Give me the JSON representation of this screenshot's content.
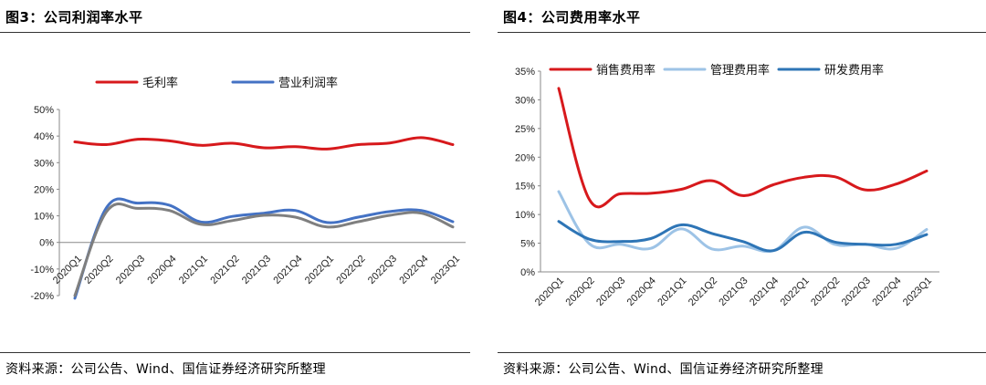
{
  "left": {
    "title": "图3：公司利润率水平",
    "source": "资料来源：公司公告、Wind、国信证券经济研究所整理"
  },
  "right": {
    "title": "图4：公司费用率水平",
    "source": "资料来源：公司公告、Wind、国信证券经济研究所整理"
  },
  "chart_data": [
    {
      "type": "line",
      "title": "",
      "xlabel": "",
      "ylabel": "",
      "categories": [
        "2020Q1",
        "2020Q2",
        "2020Q3",
        "2020Q4",
        "2021Q1",
        "2021Q2",
        "2021Q3",
        "2021Q4",
        "2022Q1",
        "2022Q2",
        "2022Q3",
        "2022Q4",
        "2023Q1"
      ],
      "y_ticks": [
        "50%",
        "40%",
        "30%",
        "20%",
        "10%",
        "0%",
        "-10%",
        "-20%"
      ],
      "ylim": [
        -20,
        50
      ],
      "grid": false,
      "legend_position": "top",
      "series": [
        {
          "name": "毛利率",
          "color": "#d7191c",
          "width": 3,
          "values": [
            37.8,
            36.8,
            38.8,
            38.2,
            36.5,
            37.3,
            35.6,
            36.0,
            35.1,
            36.8,
            37.4,
            39.4,
            36.8
          ]
        },
        {
          "name": "营业利润率",
          "color": "#4472c4",
          "width": 3,
          "values": [
            -21.0,
            13.0,
            14.8,
            14.0,
            7.7,
            9.8,
            11.0,
            12.0,
            7.5,
            9.5,
            11.6,
            12.0,
            7.8
          ]
        },
        {
          "name": "",
          "color": "#7f7f7f",
          "width": 3,
          "values": [
            -20.0,
            11.5,
            12.8,
            12.0,
            6.8,
            8.2,
            10.2,
            9.5,
            5.8,
            7.8,
            10.2,
            11.0,
            5.8
          ]
        }
      ]
    },
    {
      "type": "line",
      "title": "",
      "xlabel": "",
      "ylabel": "",
      "categories": [
        "2020Q1",
        "2020Q2",
        "2020Q3",
        "2020Q4",
        "2021Q1",
        "2021Q2",
        "2021Q3",
        "2021Q4",
        "2022Q1",
        "2022Q2",
        "2022Q3",
        "2022Q4",
        "2023Q1"
      ],
      "y_ticks": [
        "35%",
        "30%",
        "25%",
        "20%",
        "15%",
        "10%",
        "5%",
        "0%"
      ],
      "ylim": [
        0,
        35
      ],
      "grid": false,
      "legend_position": "top",
      "series": [
        {
          "name": "销售费用率",
          "color": "#d7191c",
          "width": 3,
          "values": [
            32.0,
            12.6,
            13.6,
            13.7,
            14.4,
            15.9,
            13.3,
            15.2,
            16.5,
            16.6,
            14.3,
            15.3,
            17.6
          ]
        },
        {
          "name": "管理费用率",
          "color": "#9dc3e6",
          "width": 3,
          "values": [
            14.0,
            4.9,
            4.8,
            4.1,
            7.5,
            4.0,
            4.5,
            3.7,
            7.8,
            4.8,
            4.8,
            4.1,
            7.4
          ]
        },
        {
          "name": "研发费用率",
          "color": "#2e75b6",
          "width": 3,
          "values": [
            8.8,
            5.7,
            5.3,
            5.8,
            8.2,
            6.7,
            5.3,
            3.7,
            6.9,
            5.2,
            4.8,
            4.8,
            6.5
          ]
        }
      ]
    }
  ]
}
